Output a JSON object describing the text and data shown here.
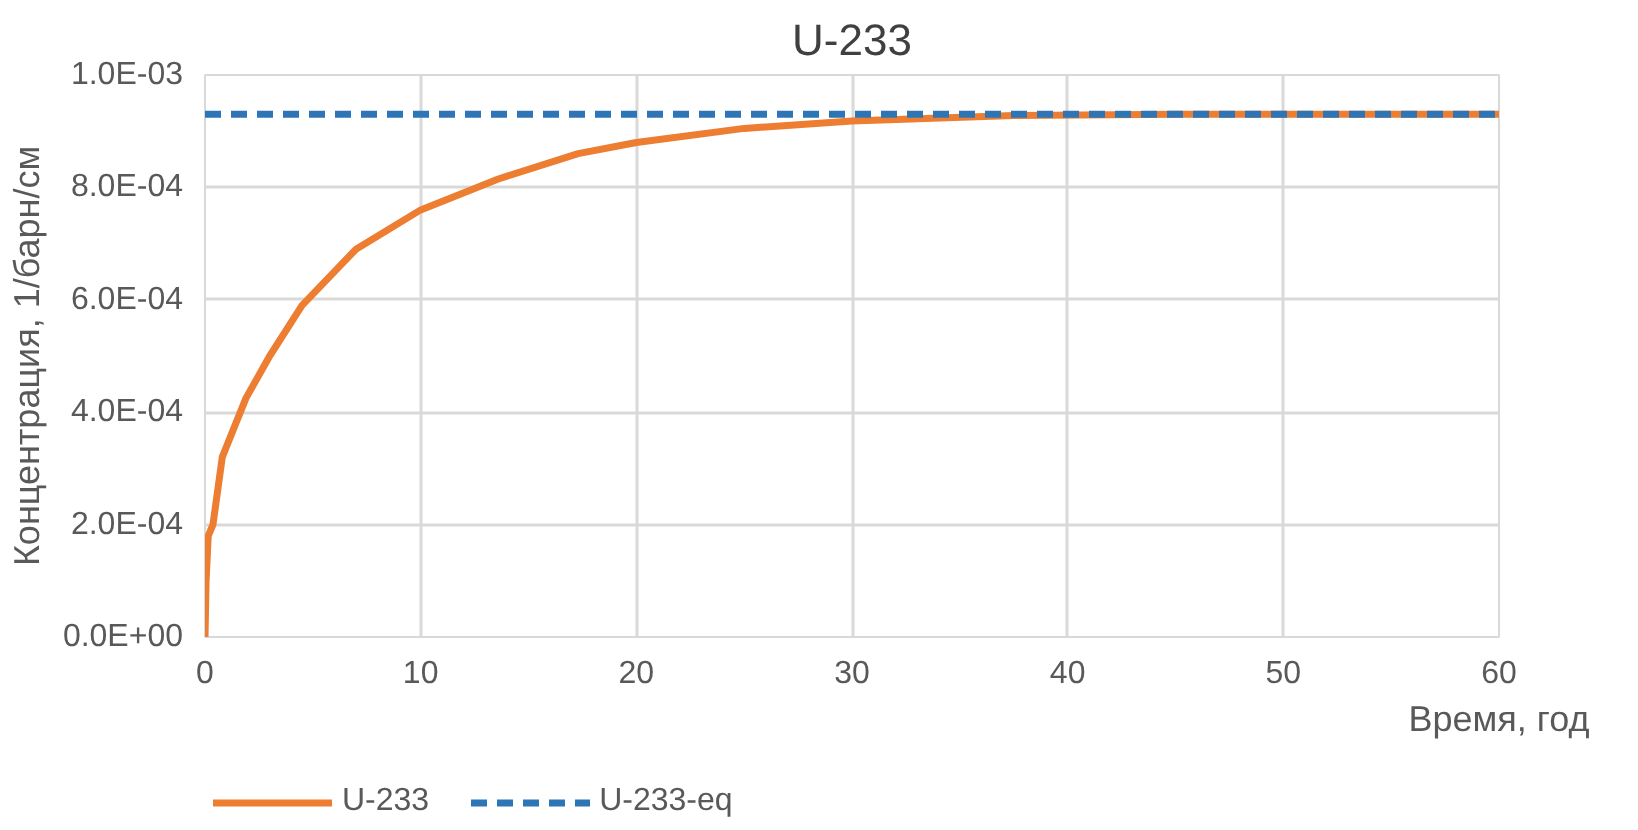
{
  "chart_data": {
    "type": "line",
    "title": "U-233",
    "xlabel": "Время, год",
    "ylabel": "Концентрация, 1/барн/см",
    "xlim": [
      0,
      60
    ],
    "xticks": [
      0,
      10,
      20,
      30,
      40,
      50,
      60
    ],
    "ylim": [
      0,
      0.001
    ],
    "yticks": [
      {
        "value": 0,
        "label": "0.0E+00"
      },
      {
        "value": 0.0002,
        "label": "2.0E-04"
      },
      {
        "value": 0.0004,
        "label": "4.0E-04"
      },
      {
        "value": 0.0006,
        "label": "6.0E-04"
      },
      {
        "value": 0.0008,
        "label": "8.0E-04"
      },
      {
        "value": 0.001,
        "label": "1.0E-03"
      }
    ],
    "grid": true,
    "legend": "bottom left",
    "marker": "none",
    "series": [
      {
        "name": "U-233",
        "color": "#ed7d31",
        "line_style": "solid",
        "x": [
          0,
          0.05,
          0.15,
          0.37,
          0.8,
          1.9,
          3,
          4.5,
          7,
          10,
          13.6,
          17.3,
          20,
          25,
          30,
          37.5,
          45,
          50,
          60
        ],
        "values": [
          0,
          0.0001,
          0.00018,
          0.0002,
          0.00032,
          0.000425,
          0.0005,
          0.00059,
          0.00069,
          0.00076,
          0.000815,
          0.00086,
          0.00088,
          0.000905,
          0.000918,
          0.000928,
          0.00093,
          0.00093,
          0.00093
        ]
      },
      {
        "name": "U-233-eq",
        "color": "#2e75b6",
        "line_style": "dashed",
        "x": [
          0,
          60
        ],
        "values": [
          0.00093,
          0.00093
        ]
      }
    ]
  }
}
